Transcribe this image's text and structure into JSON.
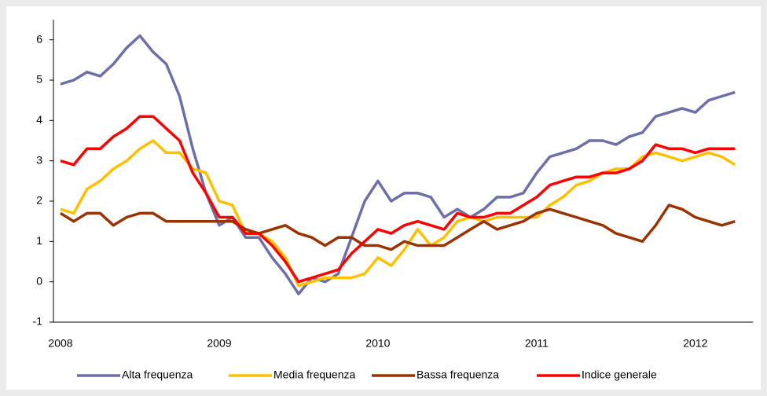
{
  "chart_data": {
    "type": "line",
    "categories": [
      "2008",
      null,
      null,
      null,
      null,
      null,
      null,
      null,
      null,
      null,
      null,
      null,
      "2009",
      null,
      null,
      null,
      null,
      null,
      null,
      null,
      null,
      null,
      null,
      null,
      "2010",
      null,
      null,
      null,
      null,
      null,
      null,
      null,
      null,
      null,
      null,
      null,
      "2011",
      null,
      null,
      null,
      null,
      null,
      null,
      null,
      null,
      null,
      null,
      null,
      "2012",
      null,
      null,
      null
    ],
    "series": [
      {
        "name": "Alta frequenza",
        "color": "#6d6fa8",
        "values": [
          4.9,
          5.0,
          5.2,
          5.1,
          5.4,
          5.8,
          6.1,
          5.7,
          5.4,
          4.6,
          3.3,
          2.2,
          1.4,
          1.6,
          1.1,
          1.1,
          0.6,
          0.2,
          -0.3,
          0.1,
          0.0,
          0.2,
          1.1,
          2.0,
          2.5,
          2.0,
          2.2,
          2.2,
          2.1,
          1.6,
          1.8,
          1.6,
          1.8,
          2.1,
          2.1,
          2.2,
          2.7,
          3.1,
          3.2,
          3.3,
          3.5,
          3.5,
          3.4,
          3.6,
          3.7,
          4.1,
          4.2,
          4.3,
          4.2,
          4.5,
          4.6,
          4.7
        ]
      },
      {
        "name": "Media frequenza",
        "color": "#ffc000",
        "values": [
          1.8,
          1.7,
          2.3,
          2.5,
          2.8,
          3.0,
          3.3,
          3.5,
          3.2,
          3.2,
          2.8,
          2.7,
          2.0,
          1.9,
          1.2,
          1.2,
          1.0,
          0.6,
          -0.1,
          0.0,
          0.1,
          0.1,
          0.1,
          0.2,
          0.6,
          0.4,
          0.8,
          1.3,
          0.9,
          1.1,
          1.5,
          1.6,
          1.5,
          1.6,
          1.6,
          1.6,
          1.6,
          1.9,
          2.1,
          2.4,
          2.5,
          2.7,
          2.8,
          2.8,
          3.1,
          3.2,
          3.1,
          3.0,
          3.1,
          3.2,
          3.1,
          2.9
        ]
      },
      {
        "name": "Bassa frequenza",
        "color": "#993300",
        "values": [
          1.7,
          1.5,
          1.7,
          1.7,
          1.4,
          1.6,
          1.7,
          1.7,
          1.5,
          1.5,
          1.5,
          1.5,
          1.5,
          1.5,
          1.3,
          1.2,
          1.3,
          1.4,
          1.2,
          1.1,
          0.9,
          1.1,
          1.1,
          0.9,
          0.9,
          0.8,
          1.0,
          0.9,
          0.9,
          0.9,
          1.1,
          1.3,
          1.5,
          1.3,
          1.4,
          1.5,
          1.7,
          1.8,
          1.7,
          1.6,
          1.5,
          1.4,
          1.2,
          1.1,
          1.0,
          1.4,
          1.9,
          1.8,
          1.6,
          1.5,
          1.4,
          1.5
        ]
      },
      {
        "name": "Indice generale",
        "color": "#ff0000",
        "values": [
          3.0,
          2.9,
          3.3,
          3.3,
          3.6,
          3.8,
          4.1,
          4.1,
          3.8,
          3.5,
          2.7,
          2.2,
          1.6,
          1.6,
          1.2,
          1.2,
          0.9,
          0.5,
          0.0,
          0.1,
          0.2,
          0.3,
          0.7,
          1.0,
          1.3,
          1.2,
          1.4,
          1.5,
          1.4,
          1.3,
          1.7,
          1.6,
          1.6,
          1.7,
          1.7,
          1.9,
          2.1,
          2.4,
          2.5,
          2.6,
          2.6,
          2.7,
          2.7,
          2.8,
          3.0,
          3.4,
          3.3,
          3.3,
          3.2,
          3.3,
          3.3,
          3.3
        ]
      }
    ],
    "ylim": [
      -1,
      6.5
    ],
    "yticks": [
      -1,
      0,
      1,
      2,
      3,
      4,
      5,
      6
    ],
    "legend": "bottom"
  }
}
